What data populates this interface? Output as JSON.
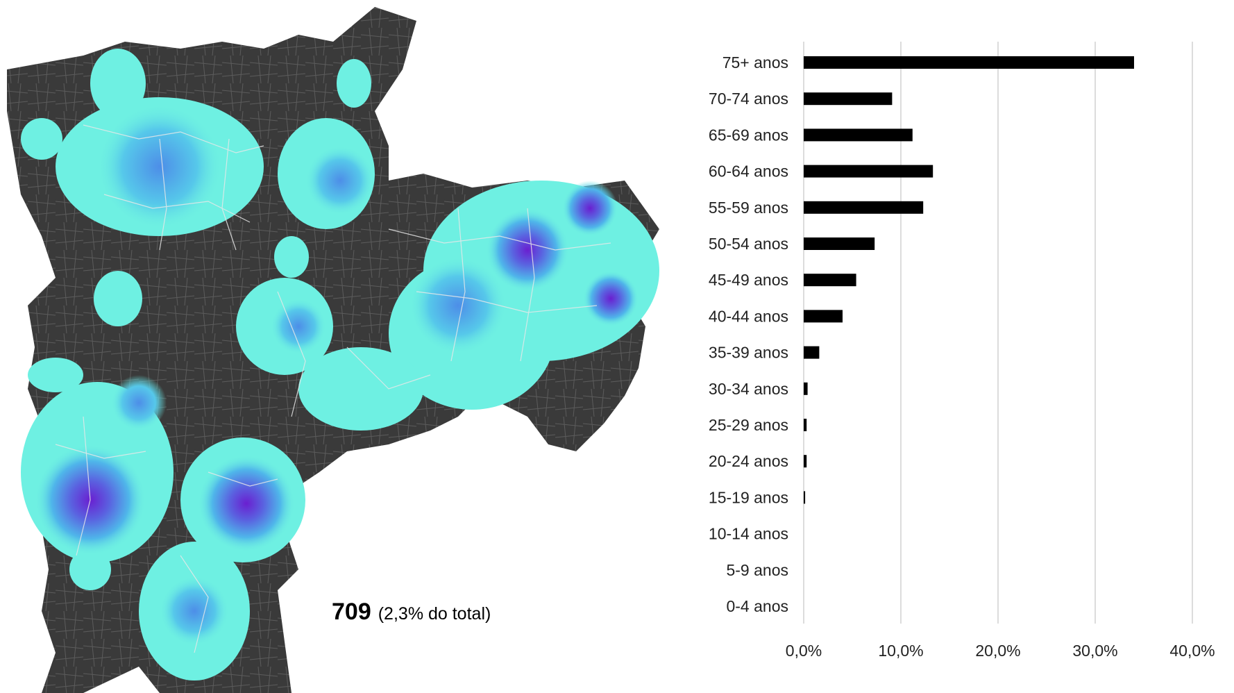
{
  "map": {
    "total_count": "709",
    "total_share": "(2,3% do total)",
    "colors": {
      "base_dark": "#2a2a2a",
      "low": "#6ef0e2",
      "mid": "#4d8ee8",
      "high": "#6a1fd0",
      "roads": "#e8e8e8"
    }
  },
  "chart_data": {
    "type": "bar",
    "orientation": "horizontal",
    "title": "",
    "xlabel": "",
    "ylabel": "",
    "categories": [
      "75+ anos",
      "70-74 anos",
      "65-69 anos",
      "60-64 anos",
      "55-59 anos",
      "50-54 anos",
      "45-49 anos",
      "40-44 anos",
      "35-39 anos",
      "30-34 anos",
      "25-29 anos",
      "20-24 anos",
      "15-19 anos",
      "10-14 anos",
      "5-9 anos",
      "0-4 anos"
    ],
    "values": [
      34.0,
      9.1,
      11.2,
      13.3,
      12.3,
      7.3,
      5.4,
      4.0,
      1.6,
      0.4,
      0.3,
      0.3,
      0.15,
      0,
      0,
      0
    ],
    "xlim": [
      0,
      40
    ],
    "xticks": [
      0,
      10,
      20,
      30,
      40
    ],
    "xtick_labels": [
      "0,0%",
      "10,0%",
      "20,0%",
      "30,0%",
      "40,0%"
    ],
    "grid": "vertical",
    "bar_color": "#000000",
    "grid_color": "#d0d0d0"
  }
}
